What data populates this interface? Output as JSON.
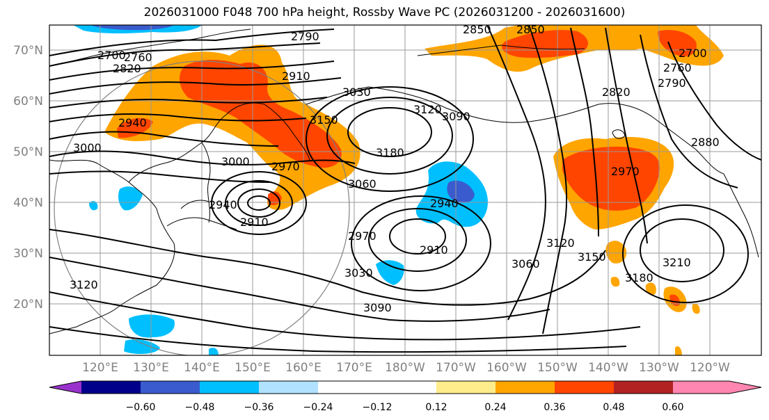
{
  "title": "2026031000 F048 700 hPa height, Rossby Wave PC (2026031200 - 2026031600)",
  "latitude_labels": [
    "70°N",
    "60°N",
    "50°N",
    "40°N",
    "30°N",
    "20°N"
  ],
  "longitude_labels": [
    "120°E",
    "130°E",
    "140°E",
    "150°E",
    "160°E",
    "170°E",
    "180°W",
    "170°W",
    "160°W",
    "150°W",
    "140°W",
    "130°W",
    "120°W"
  ],
  "colorbar": {
    "tick_labels": [
      "−0.60",
      "−0.48",
      "−0.36",
      "−0.24",
      "−0.12",
      "0.12",
      "0.24",
      "0.36",
      "0.48",
      "0.60"
    ],
    "colors": {
      "under": "#9932cc",
      "b1": "#00008b",
      "b2": "#3a5bcd",
      "b3": "#00bfff",
      "b4": "#b0e2ff",
      "b5": "#ffffff",
      "b6": "#ffec8b",
      "b7": "#ffa500",
      "b8": "#ff4500",
      "b9": "#b22222",
      "over": "#ff86b0"
    }
  },
  "contour_labels": {
    "c2790a": "2790",
    "c2700": "2700",
    "c2760": "2760",
    "c2820a": "2820",
    "c2940a": "2940",
    "c3000a": "3000",
    "c2910a": "2910",
    "c3030a": "3030",
    "c3150a": "3150",
    "c3120a": "3120",
    "c3090a": "3090",
    "c3180a": "3180",
    "c3000b": "3000",
    "c2970a": "2970",
    "c3060a": "3060",
    "c2940b": "2940",
    "c2910b": "2910",
    "c2970b": "2970",
    "c2940c": "2940",
    "c2910c": "2910",
    "c3030b": "3030",
    "c3090b": "3090",
    "c3120b": "3120",
    "c3060b": "3060",
    "c3120c": "3120",
    "c3150b": "3150",
    "c3180b": "3180",
    "c3210": "3210",
    "c2850a": "2850",
    "c2850b": "2850",
    "c2820b": "2820",
    "c2880": "2880",
    "c2970c": "2970",
    "c2790b": "2790",
    "c2760b": "2760",
    "c2700b": "2700"
  }
}
